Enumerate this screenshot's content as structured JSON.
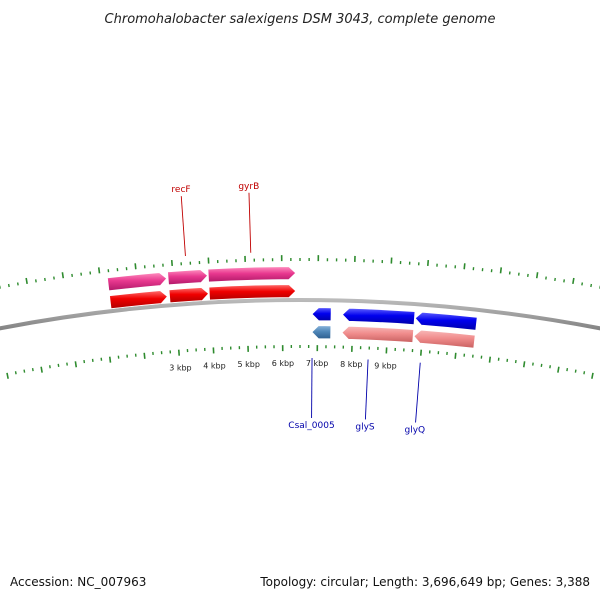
{
  "title": "Chromohalobacter salexigens DSM 3043, complete genome",
  "footer": {
    "accession": "Accession: NC_007963",
    "summary": "Topology: circular; Length: 3,696,649 bp; Genes: 3,388"
  },
  "colors": {
    "tick_mark": "#2e8b2e",
    "backbone": "#777777",
    "forward_cds": "#f00000",
    "forward_gene": "#e8388f",
    "reverse_cds": "#0000ee",
    "reverse_gene": "#f08c8c",
    "reverse_small_gene": "#4f86b8",
    "forward_label": "#c00000",
    "reverse_label": "#0000aa"
  },
  "scale": {
    "unit": "kbp",
    "labels": [
      {
        "kbp": 3,
        "text": "3 kbp"
      },
      {
        "kbp": 4,
        "text": "4 kbp"
      },
      {
        "kbp": 5,
        "text": "5 kbp"
      },
      {
        "kbp": 6,
        "text": "6 kbp"
      },
      {
        "kbp": 7,
        "text": "7 kbp"
      },
      {
        "kbp": 8,
        "text": "8 kbp"
      },
      {
        "kbp": 9,
        "text": "9 kbp"
      }
    ]
  },
  "features": [
    {
      "id": "gene-a",
      "strand": "+",
      "track": "gene",
      "start_kbp": 1.2,
      "end_kbp": 2.82,
      "label": ""
    },
    {
      "id": "gene-recf",
      "strand": "+",
      "track": "gene",
      "start_kbp": 2.86,
      "end_kbp": 3.95,
      "label": ""
    },
    {
      "id": "gene-gyrb",
      "strand": "+",
      "track": "gene",
      "start_kbp": 3.97,
      "end_kbp": 6.38,
      "label": ""
    },
    {
      "id": "cds-a",
      "strand": "+",
      "track": "cds",
      "start_kbp": 1.2,
      "end_kbp": 2.8,
      "label": ""
    },
    {
      "id": "cds-recf",
      "strand": "+",
      "track": "cds",
      "start_kbp": 2.86,
      "end_kbp": 3.95,
      "label": "recF"
    },
    {
      "id": "cds-gyrb",
      "strand": "+",
      "track": "cds",
      "start_kbp": 3.97,
      "end_kbp": 6.38,
      "label": "gyrB"
    },
    {
      "id": "cds-csal0005",
      "strand": "-",
      "track": "cds",
      "start_kbp": 6.84,
      "end_kbp": 7.38,
      "label": ""
    },
    {
      "id": "gene-csal0005",
      "strand": "-",
      "track": "gene",
      "start_kbp": 6.84,
      "end_kbp": 7.38,
      "label": "Csal_0005"
    },
    {
      "id": "cds-glys",
      "strand": "-",
      "track": "cds",
      "start_kbp": 7.7,
      "end_kbp": 9.74,
      "label": "glyS"
    },
    {
      "id": "gene-glys",
      "strand": "-",
      "track": "gene",
      "start_kbp": 7.7,
      "end_kbp": 9.74,
      "label": ""
    },
    {
      "id": "cds-glyq",
      "strand": "-",
      "track": "cds",
      "start_kbp": 9.76,
      "end_kbp": 11.5,
      "label": "glyQ"
    },
    {
      "id": "gene-glyq",
      "strand": "-",
      "track": "gene",
      "start_kbp": 9.76,
      "end_kbp": 11.5,
      "label": ""
    }
  ],
  "labels": [
    {
      "feature": "cds-recf",
      "text": "recF",
      "kbp": 3.38
    },
    {
      "feature": "cds-gyrb",
      "text": "gyrB",
      "kbp": 5.16
    },
    {
      "feature": "gene-csal0005",
      "text": "Csal_0005",
      "kbp": 6.85
    },
    {
      "feature": "cds-glys",
      "text": "glyS",
      "kbp": 8.48
    },
    {
      "feature": "cds-glyq",
      "text": "glyQ",
      "kbp": 10.0
    }
  ]
}
